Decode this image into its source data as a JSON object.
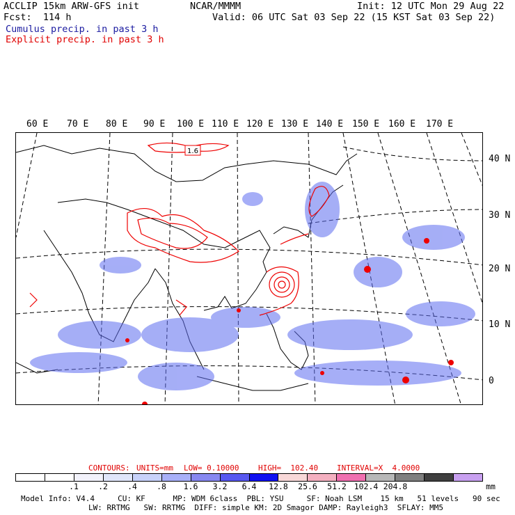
{
  "header": {
    "model": "ACCLIP 15km ARW-GFS init",
    "org": "NCAR/MMMM",
    "init": "Init: 12 UTC Mon 29 Aug 22",
    "fcst": "Fcst:  114 h",
    "valid": "Valid: 06 UTC Sat 03 Sep 22 (15 KST Sat 03 Sep 22)",
    "cumulus": "Cumulus precip. in past 3 h",
    "explicit": "Explicit precip. in past 3 h"
  },
  "map": {
    "lon_labels": [
      "60 E",
      "70 E",
      "80 E",
      "90 E",
      "100 E",
      "110 E",
      "120 E",
      "130 E",
      "140 E",
      "150 E",
      "160 E",
      "170 E"
    ],
    "lat_labels": [
      "40 N",
      "30 N",
      "20 N",
      "10 N",
      "0"
    ],
    "contour_label": "1.6",
    "colors": {
      "cumulus": "#3333ee",
      "explicit": "#ee0000",
      "coast": "#000000"
    }
  },
  "contours_line": {
    "contours": "CONTOURS:",
    "units": "UNITS=mm",
    "low": "LOW= 0.10000",
    "high": "HIGH=  102.40",
    "interval": "INTERVAL=X  4.0000"
  },
  "colorbar": {
    "colors": [
      "#ffffff",
      "#ffffff",
      "#f2f2fb",
      "#e0e6fa",
      "#c8d2fa",
      "#a8b0f8",
      "#8888f0",
      "#5858f0",
      "#1010f0",
      "#f8d8d8",
      "#f4b0c0",
      "#f070b0",
      "#b8b8b8",
      "#808080",
      "#404040",
      "#c8a0f0"
    ],
    "labels": [
      ".1",
      ".2",
      ".4",
      ".8",
      "1.6",
      "3.2",
      "6.4",
      "12.8",
      "25.6",
      "51.2",
      "102.4",
      "204.8"
    ],
    "units": "mm"
  },
  "footer": {
    "line1": "Model Info: V4.4     CU: KF      MP: WDM 6class  PBL: YSU     SF: Noah LSM    15 km   51 levels   90 sec",
    "line2": "LW: RRTMG   SW: RRTMG  DIFF: simple KM: 2D Smagor DAMP: Rayleigh3  SFLAY: MM5"
  }
}
